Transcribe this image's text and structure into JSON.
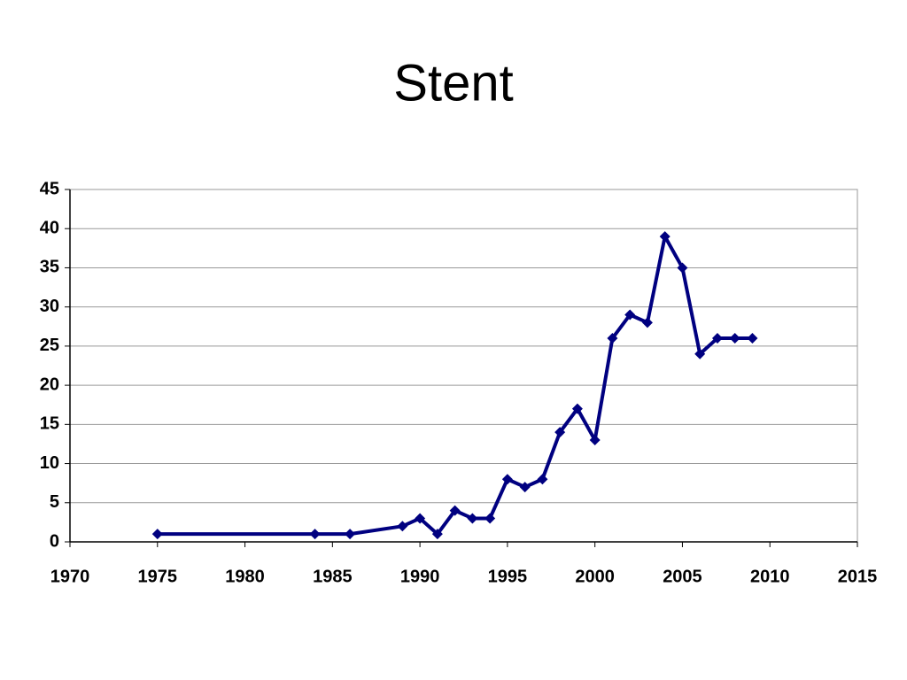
{
  "chart_data": {
    "type": "line",
    "title": "Stent",
    "x": [
      1975,
      1984,
      1986,
      1989,
      1990,
      1991,
      1992,
      1993,
      1994,
      1995,
      1996,
      1997,
      1998,
      1999,
      2000,
      2001,
      2002,
      2003,
      2004,
      2005,
      2006,
      2007,
      2008,
      2009
    ],
    "values": [
      1,
      1,
      1,
      2,
      3,
      1,
      4,
      3,
      3,
      8,
      7,
      8,
      14,
      17,
      13,
      26,
      29,
      28,
      39,
      35,
      24,
      26,
      26,
      26
    ],
    "color": "#000080",
    "xlim": [
      1970,
      2015
    ],
    "xticks": [
      1970,
      1975,
      1980,
      1985,
      1990,
      1995,
      2000,
      2005,
      2010,
      2015
    ],
    "ylim": [
      0,
      45
    ],
    "yticks": [
      0,
      5,
      10,
      15,
      20,
      25,
      30,
      35,
      40,
      45
    ],
    "grid": true
  }
}
